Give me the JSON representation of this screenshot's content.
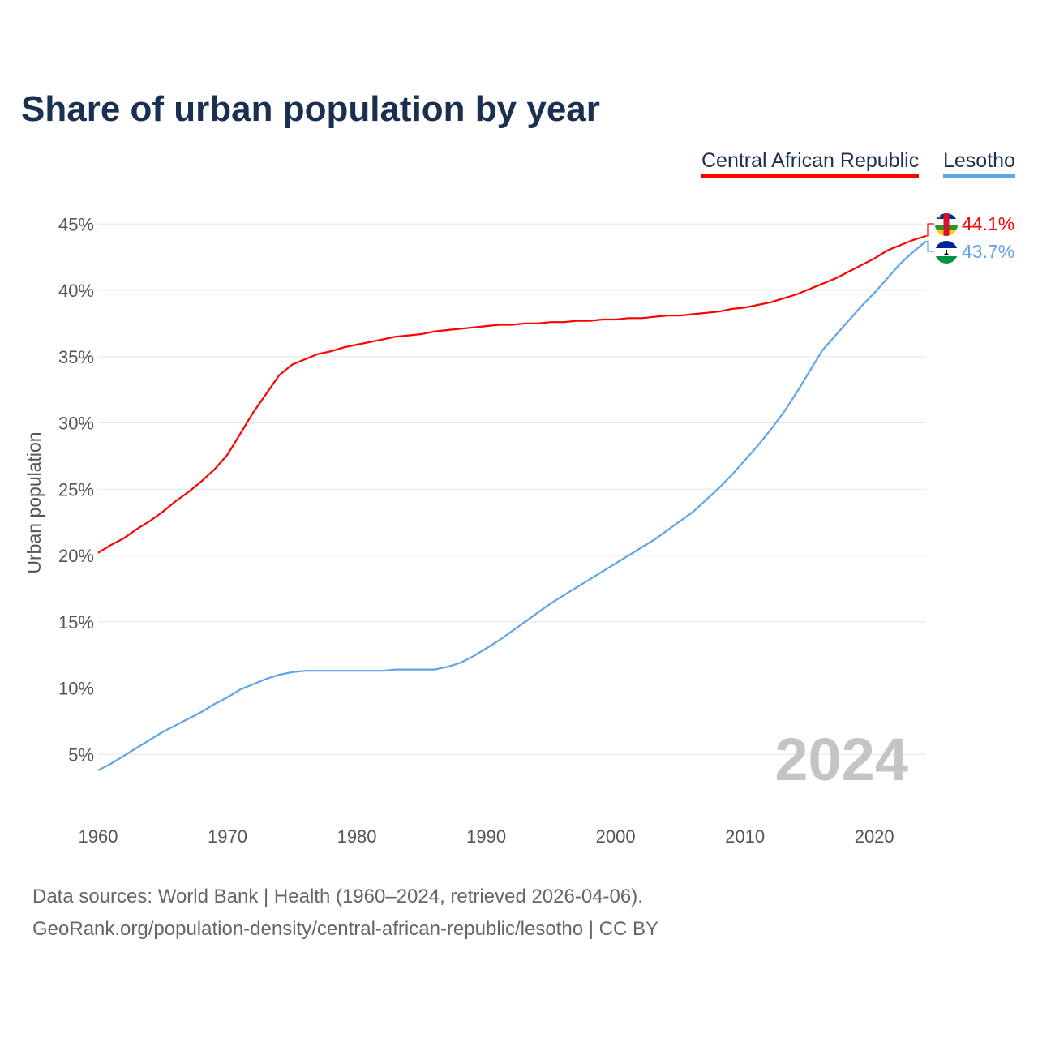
{
  "title": "Share of urban population by year",
  "footer": {
    "line1": "Data sources: World Bank | Health (1960–2024, retrieved 2026-04-06).",
    "line2": "GeoRank.org/population-density/central-african-republic/lesotho | CC BY"
  },
  "chart_data": {
    "type": "line",
    "title": "Share of urban population by year",
    "xlabel": "",
    "ylabel": "Urban population",
    "xlim": [
      1960,
      2024
    ],
    "ylim": [
      0,
      45
    ],
    "x_ticks": [
      "1960",
      "1970",
      "1980",
      "1990",
      "2000",
      "2010",
      "2020"
    ],
    "y_ticks": [
      "5%",
      "10%",
      "15%",
      "20%",
      "25%",
      "30%",
      "35%",
      "40%",
      "45%"
    ],
    "grid": true,
    "legend_position": "top-right",
    "year_watermark": "2024",
    "x": [
      1960,
      1961,
      1962,
      1963,
      1964,
      1965,
      1966,
      1967,
      1968,
      1969,
      1970,
      1971,
      1972,
      1973,
      1974,
      1975,
      1976,
      1977,
      1978,
      1979,
      1980,
      1981,
      1982,
      1983,
      1984,
      1985,
      1986,
      1987,
      1988,
      1989,
      1990,
      1991,
      1992,
      1993,
      1994,
      1995,
      1996,
      1997,
      1998,
      1999,
      2000,
      2001,
      2002,
      2003,
      2004,
      2005,
      2006,
      2007,
      2008,
      2009,
      2010,
      2011,
      2012,
      2013,
      2014,
      2015,
      2016,
      2017,
      2018,
      2019,
      2020,
      2021,
      2022,
      2023,
      2024
    ],
    "series": [
      {
        "name": "Central African Republic",
        "color": "#ff0000",
        "end_label": "44.1%",
        "values": [
          20.2,
          20.8,
          21.3,
          22.0,
          22.6,
          23.3,
          24.1,
          24.8,
          25.6,
          26.5,
          27.6,
          29.2,
          30.8,
          32.2,
          33.6,
          34.4,
          34.8,
          35.2,
          35.4,
          35.7,
          35.9,
          36.1,
          36.3,
          36.5,
          36.6,
          36.7,
          36.9,
          37.0,
          37.1,
          37.2,
          37.3,
          37.4,
          37.4,
          37.5,
          37.5,
          37.6,
          37.6,
          37.7,
          37.7,
          37.8,
          37.8,
          37.9,
          37.9,
          38.0,
          38.1,
          38.1,
          38.2,
          38.3,
          38.4,
          38.6,
          38.7,
          38.9,
          39.1,
          39.4,
          39.7,
          40.1,
          40.5,
          40.9,
          41.4,
          41.9,
          42.4,
          43.0,
          43.4,
          43.8,
          44.1
        ]
      },
      {
        "name": "Lesotho",
        "color": "#5fa4e8",
        "end_label": "43.7%",
        "values": [
          3.8,
          4.3,
          4.9,
          5.5,
          6.1,
          6.7,
          7.2,
          7.7,
          8.2,
          8.8,
          9.3,
          9.9,
          10.3,
          10.7,
          11.0,
          11.2,
          11.3,
          11.3,
          11.3,
          11.3,
          11.3,
          11.3,
          11.3,
          11.4,
          11.4,
          11.4,
          11.4,
          11.6,
          11.9,
          12.4,
          13.0,
          13.6,
          14.3,
          15.0,
          15.7,
          16.4,
          17.0,
          17.6,
          18.2,
          18.8,
          19.4,
          20.0,
          20.6,
          21.2,
          21.9,
          22.6,
          23.3,
          24.2,
          25.1,
          26.1,
          27.2,
          28.3,
          29.5,
          30.8,
          32.3,
          33.9,
          35.5,
          36.6,
          37.7,
          38.8,
          39.8,
          40.9,
          42.0,
          42.9,
          43.7
        ]
      }
    ]
  }
}
